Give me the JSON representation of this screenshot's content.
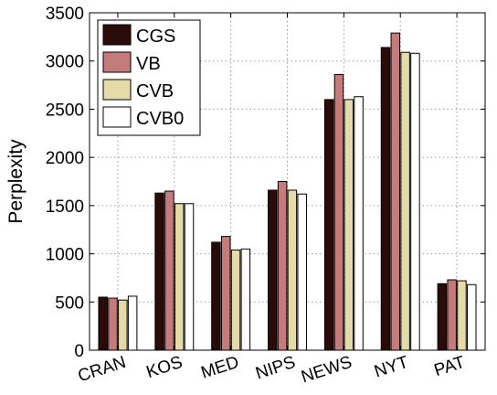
{
  "chart_data": {
    "type": "bar",
    "title": "",
    "xlabel": "",
    "ylabel": "Perplexity",
    "ylim": [
      0,
      3500
    ],
    "yticks": [
      0,
      500,
      1000,
      1500,
      2000,
      2500,
      3000,
      3500
    ],
    "ytick_labels": [
      "0",
      "500",
      "1000",
      "1500",
      "2000",
      "2500",
      "3000",
      "3500"
    ],
    "grid": true,
    "legend_position": "top-left",
    "categories": [
      "CRAN",
      "KOS",
      "MED",
      "NIPS",
      "NEWS",
      "NYT",
      "PAT"
    ],
    "series": [
      {
        "name": "CGS",
        "color": "#2b0a0a",
        "values": [
          550,
          1630,
          1120,
          1660,
          2600,
          3140,
          690
        ]
      },
      {
        "name": "VB",
        "color": "#c57b7b",
        "values": [
          540,
          1650,
          1180,
          1750,
          2860,
          3290,
          730
        ]
      },
      {
        "name": "CVB",
        "color": "#e5dba9",
        "values": [
          520,
          1520,
          1040,
          1660,
          2600,
          3090,
          720
        ]
      },
      {
        "name": "CVB0",
        "color": "#ffffff",
        "values": [
          560,
          1520,
          1050,
          1620,
          2630,
          3080,
          680
        ]
      }
    ]
  }
}
